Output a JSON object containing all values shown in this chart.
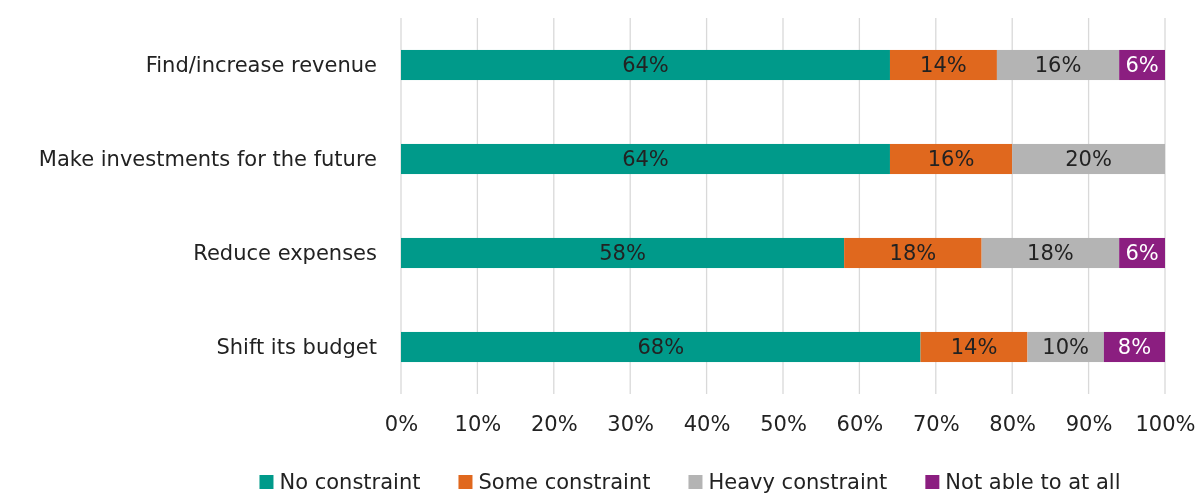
{
  "chart_data": {
    "type": "bar",
    "orientation": "horizontal",
    "stacked": true,
    "categories": [
      "Find/increase revenue",
      "Make investments for the future",
      "Reduce expenses",
      "Shift its budget"
    ],
    "series": [
      {
        "name": "No constraint",
        "color": "#009a8a",
        "values": [
          64,
          64,
          58,
          68
        ],
        "value_labels": [
          "64%",
          "64%",
          "58%",
          "68%"
        ]
      },
      {
        "name": "Some constraint",
        "color": "#e0681e",
        "values": [
          14,
          16,
          18,
          14
        ],
        "value_labels": [
          "14%",
          "16%",
          "18%",
          "14%"
        ]
      },
      {
        "name": "Heavy constraint",
        "color": "#b4b4b4",
        "values": [
          16,
          20,
          18,
          10
        ],
        "value_labels": [
          "16%",
          "20%",
          "18%",
          "10%"
        ]
      },
      {
        "name": "Not able to at all",
        "color": "#8b1e80",
        "values": [
          6,
          null,
          6,
          8
        ],
        "value_labels": [
          "6%",
          null,
          "6%",
          "8%"
        ]
      }
    ],
    "xlim": [
      0,
      100
    ],
    "xticks": [
      {
        "value": 0,
        "label": "0%"
      },
      {
        "value": 10,
        "label": "10%"
      },
      {
        "value": 20,
        "label": "20%"
      },
      {
        "value": 30,
        "label": "30%"
      },
      {
        "value": 40,
        "label": "40%"
      },
      {
        "value": 50,
        "label": "50%"
      },
      {
        "value": 60,
        "label": "60%"
      },
      {
        "value": 70,
        "label": "70%"
      },
      {
        "value": 80,
        "label": "80%"
      },
      {
        "value": 90,
        "label": "90%"
      },
      {
        "value": 100,
        "label": "100%"
      }
    ],
    "grid": "x",
    "legend": "bottom"
  }
}
